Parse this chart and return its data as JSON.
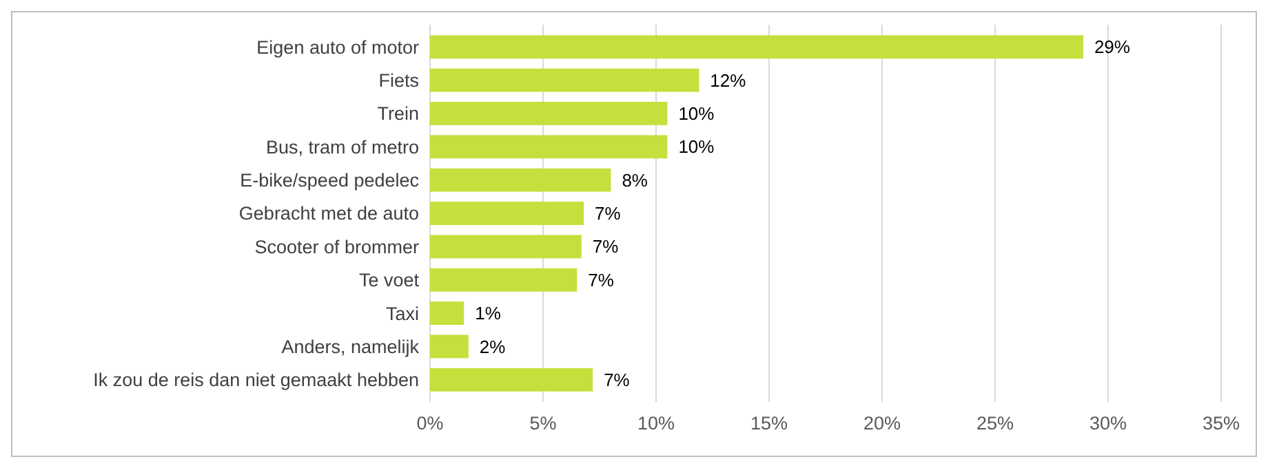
{
  "chart_data": {
    "type": "bar",
    "orientation": "horizontal",
    "categories": [
      "Eigen auto of motor",
      "Fiets",
      "Trein",
      "Bus, tram of metro",
      "E-bike/speed pedelec",
      "Gebracht met de auto",
      "Scooter of brommer",
      "Te voet",
      "Taxi",
      "Anders, namelijk",
      "Ik zou de reis dan niet gemaakt hebben"
    ],
    "values": [
      28.9,
      11.9,
      10.5,
      10.5,
      8.0,
      6.8,
      6.7,
      6.5,
      1.5,
      1.7,
      7.2
    ],
    "value_labels": [
      "29%",
      "12%",
      "10%",
      "10%",
      "8%",
      "7%",
      "7%",
      "7%",
      "1%",
      "2%",
      "7%"
    ],
    "color": "#c5df3c",
    "xlim": [
      0,
      35
    ],
    "xticks": [
      {
        "value": 0,
        "label": "0%"
      },
      {
        "value": 5,
        "label": "5%"
      },
      {
        "value": 10,
        "label": "10%"
      },
      {
        "value": 15,
        "label": "15%"
      },
      {
        "value": 20,
        "label": "20%"
      },
      {
        "value": 25,
        "label": "25%"
      },
      {
        "value": 30,
        "label": "30%"
      },
      {
        "value": 35,
        "label": "35%"
      }
    ],
    "grid": "x"
  }
}
